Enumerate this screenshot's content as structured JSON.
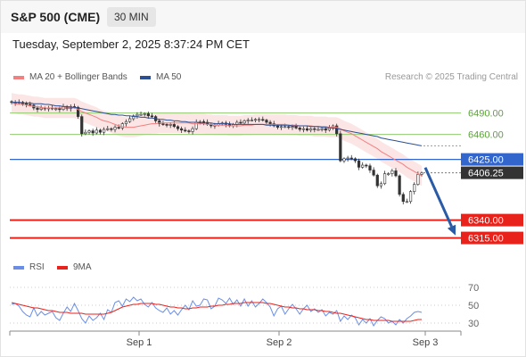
{
  "header": {
    "instrument": "S&P 500 (CME)",
    "timeframe": "30 MIN",
    "datetime": "Tuesday, September 2, 2025 8:37:24 PM CET"
  },
  "legend": {
    "ma20": "MA 20 + Bollinger Bands",
    "ma50": "MA 50",
    "copyright": "Research © 2025 Trading Central",
    "rsi": "RSI",
    "rsi_ma": "9MA"
  },
  "colors": {
    "ma20": "#f28080",
    "ma50": "#2c4f93",
    "band_fill": "#fbe0e0",
    "resistance": "#90cc70",
    "pivot": "#3366cc",
    "support": "#e8231c",
    "last_price_bg": "#333333",
    "up_candle": "#ffffff",
    "down_candle": "#333333",
    "arrow": "#2a5ba6",
    "rsi": "#6a8ee8",
    "rsi_ma": "#e8231c"
  },
  "chart_data": [
    {
      "type": "candlestick",
      "title": "",
      "xlabel": "",
      "ylabel": "",
      "ylim": [
        6297,
        6522
      ],
      "x_ticks": [
        "Sep 1",
        "Sep 2",
        "Sep 3"
      ],
      "levels": [
        {
          "label": "6490.00",
          "value": 6490,
          "kind": "resistance"
        },
        {
          "label": "6460.00",
          "value": 6460,
          "kind": "resistance"
        },
        {
          "label": "6425.00",
          "value": 6425,
          "kind": "pivot"
        },
        {
          "label": "6406.25",
          "value": 6406.25,
          "kind": "last"
        },
        {
          "label": "6340.00",
          "value": 6340,
          "kind": "support"
        },
        {
          "label": "6315.00",
          "value": 6315,
          "kind": "support"
        }
      ],
      "forecast_arrow": {
        "from": 6406,
        "to": 6316
      },
      "close": [
        6505,
        6504,
        6505,
        6503,
        6502,
        6501,
        6497,
        6495,
        6497,
        6496,
        6497,
        6496,
        6496,
        6495,
        6499,
        6496,
        6499,
        6498,
        6485,
        6461,
        6463,
        6465,
        6462,
        6466,
        6463,
        6467,
        6468,
        6467,
        6470,
        6469,
        6475,
        6478,
        6482,
        6486,
        6488,
        6488,
        6489,
        6486,
        6485,
        6479,
        6475,
        6474,
        6473,
        6474,
        6471,
        6468,
        6466,
        6465,
        6464,
        6468,
        6477,
        6478,
        6477,
        6474,
        6472,
        6473,
        6475,
        6476,
        6474,
        6472,
        6474,
        6477,
        6476,
        6479,
        6480,
        6480,
        6481,
        6481,
        6480,
        6477,
        6475,
        6472,
        6470,
        6471,
        6471,
        6470,
        6471,
        6469,
        6467,
        6468,
        6466,
        6468,
        6467,
        6467,
        6468,
        6466,
        6469,
        6472,
        6461,
        6423,
        6426,
        6427,
        6426,
        6423,
        6414,
        6417,
        6416,
        6410,
        6403,
        6388,
        6391,
        6405,
        6405,
        6409,
        6402,
        6376,
        6366,
        6366,
        6380,
        6390,
        6404,
        6406
      ],
      "ma20": [
        6504,
        6503,
        6502,
        6502,
        6501,
        6500,
        6499,
        6499,
        6498,
        6497,
        6497,
        6497,
        6497,
        6497,
        6497,
        6497,
        6497,
        6497,
        6495,
        6492,
        6490,
        6488,
        6486,
        6484,
        6481,
        6479,
        6478,
        6476,
        6474,
        6472,
        6471,
        6470,
        6470,
        6470,
        6471,
        6472,
        6473,
        6474,
        6475,
        6475,
        6476,
        6476,
        6476,
        6476,
        6476,
        6476,
        6476,
        6476,
        6476,
        6475,
        6475,
        6475,
        6475,
        6474,
        6474,
        6473,
        6473,
        6473,
        6473,
        6472,
        6472,
        6472,
        6472,
        6473,
        6473,
        6473,
        6474,
        6474,
        6474,
        6474,
        6474,
        6474,
        6474,
        6474,
        6474,
        6473,
        6473,
        6473,
        6472,
        6472,
        6472,
        6472,
        6471,
        6471,
        6471,
        6471,
        6470,
        6470,
        6470,
        6468,
        6465,
        6463,
        6461,
        6458,
        6455,
        6452,
        6449,
        6446,
        6443,
        6440,
        6436,
        6433,
        6430,
        6427,
        6424,
        6421,
        6418,
        6414,
        6411,
        6408,
        6405,
        6402
      ],
      "ma50": [
        6505,
        6505,
        6505,
        6504,
        6504,
        6504,
        6503,
        6503,
        6503,
        6502,
        6502,
        6501,
        6500,
        6500,
        6499,
        6499,
        6498,
        6498,
        6497,
        6496,
        6495,
        6494,
        6493,
        6492,
        6491,
        6490,
        6489,
        6488,
        6488,
        6487,
        6487,
        6486,
        6486,
        6485,
        6485,
        6484,
        6484,
        6483,
        6483,
        6482,
        6481,
        6481,
        6480,
        6480,
        6479,
        6479,
        6478,
        6478,
        6477,
        6477,
        6477,
        6476,
        6476,
        6476,
        6476,
        6475,
        6475,
        6475,
        6475,
        6475,
        6474,
        6474,
        6474,
        6474,
        6474,
        6474,
        6474,
        6474,
        6474,
        6473,
        6473,
        6473,
        6473,
        6473,
        6473,
        6473,
        6472,
        6472,
        6472,
        6472,
        6472,
        6471,
        6471,
        6471,
        6470,
        6470,
        6469,
        6469,
        6468,
        6467,
        6466,
        6465,
        6464,
        6463,
        6462,
        6461,
        6460,
        6459,
        6458,
        6457,
        6455,
        6454,
        6453,
        6452,
        6451,
        6450,
        6449,
        6448,
        6447,
        6446,
        6445,
        6444
      ],
      "band_width": 14
    },
    {
      "type": "line",
      "title": "",
      "ylim": [
        22,
        78
      ],
      "y_ticks": [
        70,
        50,
        30
      ],
      "series": [
        {
          "name": "RSI",
          "values": [
            51,
            52,
            49,
            43,
            39,
            37,
            47,
            38,
            43,
            39,
            41,
            43,
            36,
            33,
            41,
            48,
            43,
            52,
            44,
            35,
            30,
            38,
            33,
            36,
            41,
            34,
            45,
            42,
            53,
            55,
            49,
            57,
            54,
            59,
            55,
            57,
            51,
            48,
            53,
            47,
            44,
            42,
            47,
            40,
            44,
            39,
            45,
            50,
            45,
            55,
            49,
            50,
            57,
            56,
            46,
            49,
            58,
            56,
            52,
            58,
            51,
            56,
            49,
            57,
            49,
            55,
            48,
            52,
            57,
            53,
            48,
            38,
            46,
            49,
            40,
            46,
            51,
            46,
            40,
            46,
            50,
            43,
            46,
            42,
            45,
            38,
            42,
            40,
            44,
            32,
            38,
            34,
            39,
            36,
            28,
            34,
            30,
            35,
            27,
            33,
            37,
            35,
            30,
            32,
            28,
            34,
            30,
            35,
            38,
            42,
            43,
            42
          ]
        },
        {
          "name": "9MA",
          "values": [
            53,
            52,
            51,
            50,
            49,
            48,
            47,
            47,
            46,
            45,
            44,
            44,
            43,
            42,
            42,
            42,
            41,
            41,
            41,
            41,
            40,
            40,
            40,
            40,
            40,
            40,
            41,
            42,
            44,
            46,
            48,
            49,
            50,
            51,
            51,
            52,
            52,
            52,
            52,
            51,
            51,
            50,
            49,
            48,
            48,
            47,
            47,
            46,
            46,
            47,
            47,
            48,
            48,
            48,
            49,
            49,
            50,
            50,
            51,
            51,
            52,
            52,
            52,
            53,
            53,
            53,
            53,
            53,
            53,
            52,
            52,
            51,
            50,
            49,
            48,
            48,
            47,
            47,
            46,
            46,
            45,
            45,
            45,
            44,
            44,
            43,
            43,
            42,
            41,
            41,
            40,
            39,
            38,
            37,
            36,
            35,
            34,
            34,
            33,
            33,
            33,
            33,
            33,
            32,
            32,
            32,
            32,
            32,
            32,
            33,
            34,
            34
          ]
        }
      ]
    }
  ]
}
